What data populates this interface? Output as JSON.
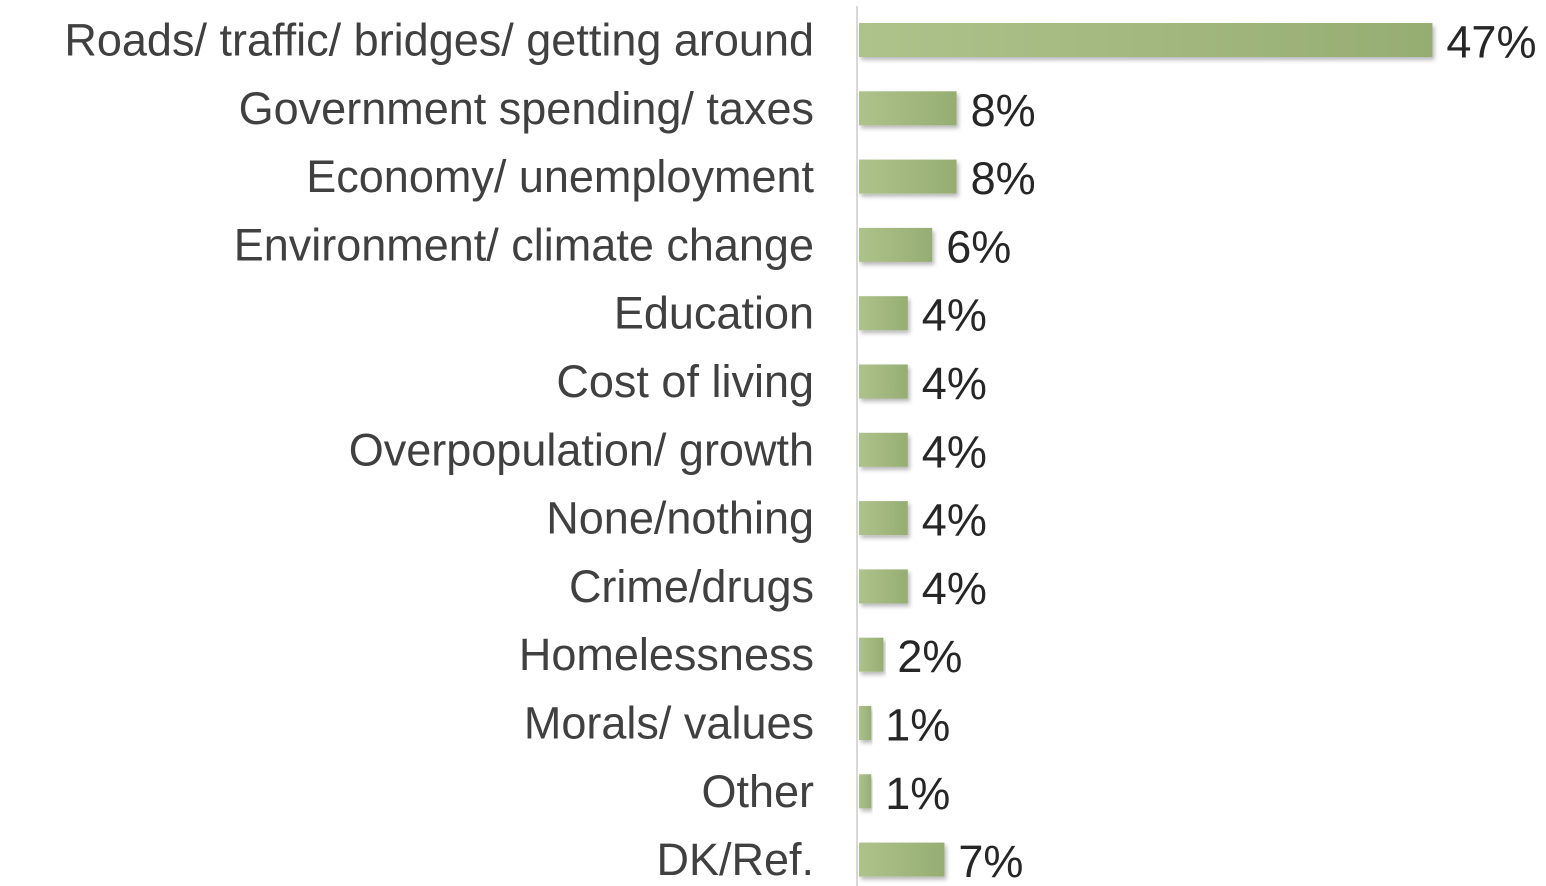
{
  "chart_data": {
    "type": "bar",
    "orientation": "horizontal",
    "categories": [
      "Roads/ traffic/ bridges/ getting around",
      "Government spending/ taxes",
      "Economy/ unemployment",
      "Environment/ climate change",
      "Education",
      "Cost of living",
      "Overpopulation/ growth",
      "None/nothing",
      "Crime/drugs",
      "Homelessness",
      "Morals/ values",
      "Other",
      "DK/Ref."
    ],
    "values": [
      47,
      8,
      8,
      6,
      4,
      4,
      4,
      4,
      4,
      2,
      1,
      1,
      7
    ],
    "value_labels": [
      "47%",
      "8%",
      "8%",
      "6%",
      "4%",
      "4%",
      "4%",
      "4%",
      "4%",
      "2%",
      "1%",
      "1%",
      "7%"
    ],
    "unit": "%",
    "xlim": [
      0,
      50
    ],
    "grid": false,
    "legend": "none",
    "colors": {
      "bar_light": "#aec38b",
      "bar_dark": "#96ad72",
      "axis": "#d9d9d9",
      "label": "#404040",
      "value": "#262626"
    }
  }
}
